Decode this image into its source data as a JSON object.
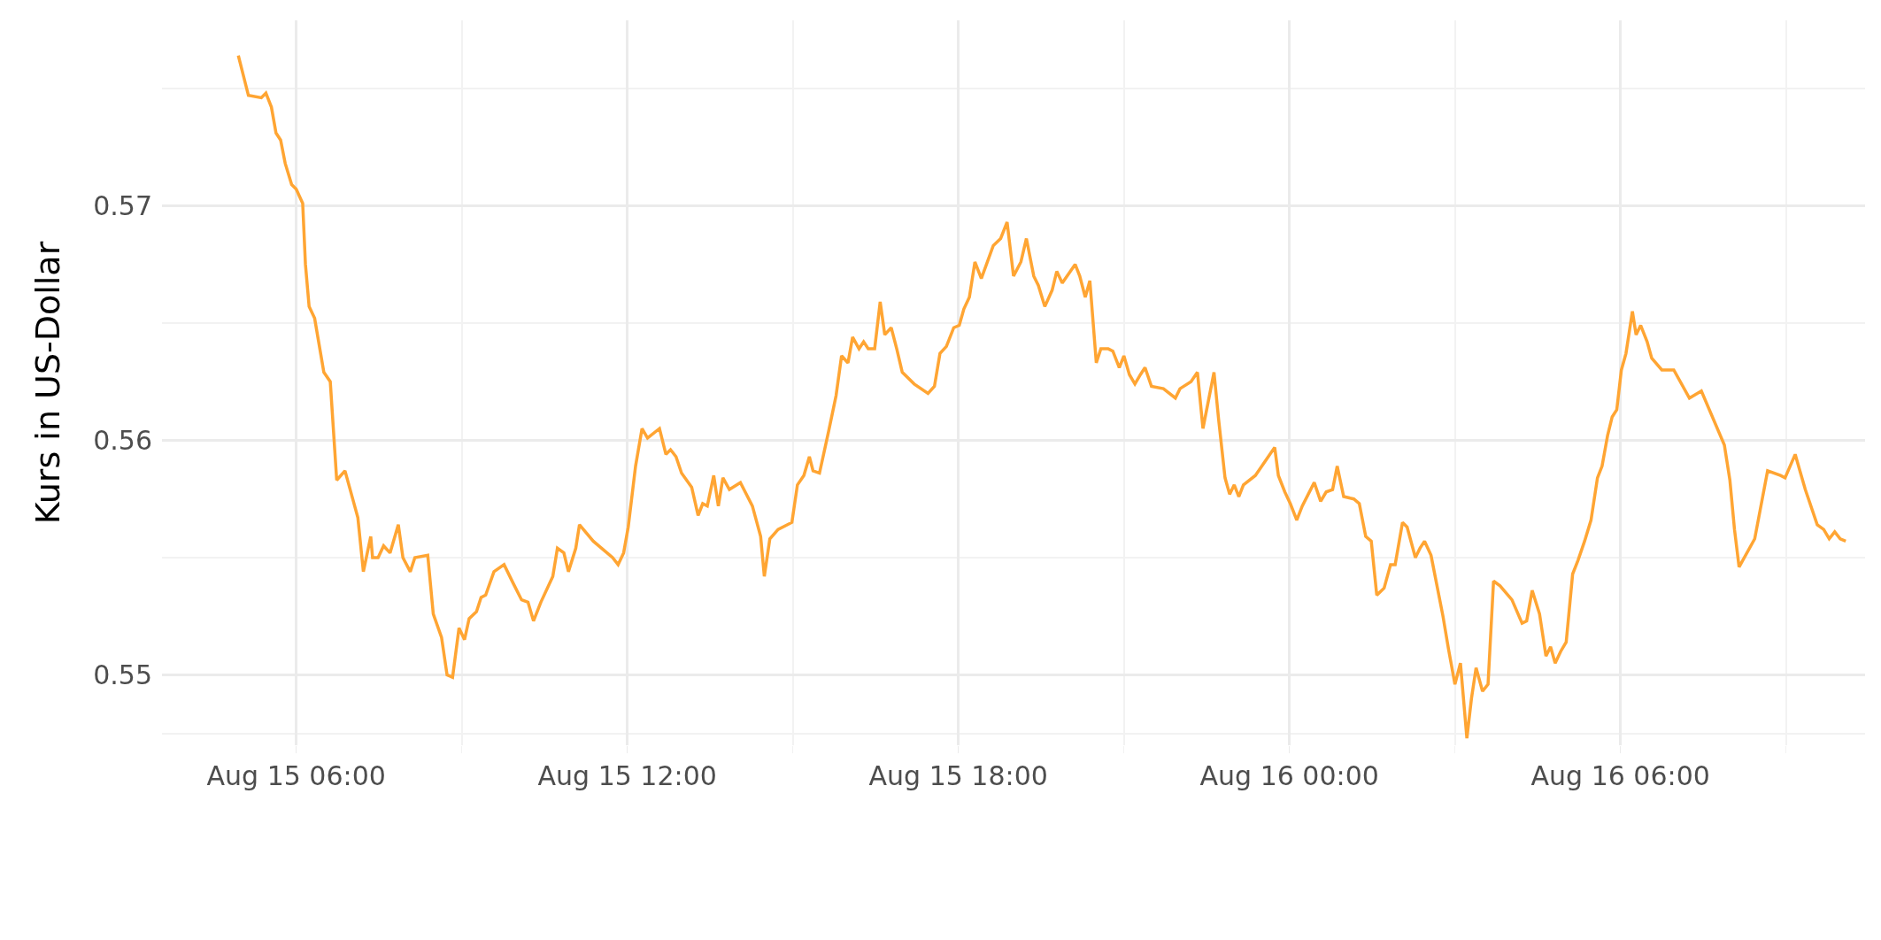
{
  "chart_data": {
    "type": "line",
    "ylabel": "Kurs in US-Dollar",
    "x": [
      "--08-15T04:57",
      "--08-15T05:08",
      "--08-15T05:22",
      "--08-15T05:27",
      "--08-15T05:33",
      "--08-15T05:38",
      "--08-15T05:43",
      "--08-15T05:48",
      "--08-15T05:55",
      "--08-15T06:00",
      "--08-15T06:07",
      "--08-15T06:10",
      "--08-15T06:14",
      "--08-15T06:20",
      "--08-15T06:30",
      "--08-15T06:37",
      "--08-15T06:44",
      "--08-15T06:53",
      "--08-15T07:07",
      "--08-15T07:13",
      "--08-15T07:21",
      "--08-15T07:23",
      "--08-15T07:29",
      "--08-15T07:35",
      "--08-15T07:42",
      "--08-15T07:51",
      "--08-15T07:56",
      "--08-15T08:04",
      "--08-15T08:09",
      "--08-15T08:23",
      "--08-15T08:29",
      "--08-15T08:38",
      "--08-15T08:44",
      "--08-15T08:50",
      "--08-15T08:57",
      "--08-15T09:03",
      "--08-15T09:08",
      "--08-15T09:16",
      "--08-15T09:21",
      "--08-15T09:26",
      "--08-15T09:35",
      "--08-15T09:46",
      "--08-15T09:56",
      "--08-15T10:05",
      "--08-15T10:12",
      "--08-15T10:18",
      "--08-15T10:26",
      "--08-15T10:39",
      "--08-15T10:44",
      "--08-15T10:51",
      "--08-15T10:56",
      "--08-15T11:04",
      "--08-15T11:08",
      "--08-15T11:23",
      "--08-15T11:44",
      "--08-15T11:50",
      "--08-15T11:56",
      "--08-15T12:01",
      "--08-15T12:09",
      "--08-15T12:16",
      "--08-15T12:22",
      "--08-15T12:35",
      "--08-15T12:42",
      "--08-15T12:47",
      "--08-15T12:53",
      "--08-15T12:59",
      "--08-15T13:10",
      "--08-15T13:17",
      "--08-15T13:22",
      "--08-15T13:27",
      "--08-15T13:34",
      "--08-15T13:39",
      "--08-15T13:44",
      "--08-15T13:51",
      "--08-15T14:03",
      "--08-15T14:16",
      "--08-15T14:25",
      "--08-15T14:29",
      "--08-15T14:35",
      "--08-15T14:44",
      "--08-15T14:59",
      "--08-15T15:05",
      "--08-15T15:12",
      "--08-15T15:18",
      "--08-15T15:22",
      "--08-15T15:29",
      "--08-15T15:39",
      "--08-15T15:47",
      "--08-15T15:53",
      "--08-15T16:00",
      "--08-15T16:05",
      "--08-15T16:12",
      "--08-15T16:17",
      "--08-15T16:22",
      "--08-15T16:29",
      "--08-15T16:35",
      "--08-15T16:40",
      "--08-15T16:47",
      "--08-15T16:53",
      "--08-15T16:59",
      "--08-15T17:12",
      "--08-15T17:27",
      "--08-15T17:34",
      "--08-15T17:40",
      "--08-15T17:47",
      "--08-15T17:55",
      "--08-15T18:01",
      "--08-15T18:06",
      "--08-15T18:12",
      "--08-15T18:18",
      "--08-15T18:25",
      "--08-15T18:38",
      "--08-15T18:46",
      "--08-15T18:53",
      "--08-15T19:00",
      "--08-15T19:08",
      "--08-15T19:14",
      "--08-15T19:22",
      "--08-15T19:27",
      "--08-15T19:34",
      "--08-15T19:42",
      "--08-15T19:47",
      "--08-15T19:53",
      "--08-15T20:07",
      "--08-15T20:12",
      "--08-15T20:18",
      "--08-15T20:23",
      "--08-15T20:30",
      "--08-15T20:35",
      "--08-15T20:43",
      "--08-15T20:48",
      "--08-15T20:55",
      "--08-15T21:00",
      "--08-15T21:06",
      "--08-15T21:12",
      "--08-15T21:18",
      "--08-15T21:23",
      "--08-15T21:30",
      "--08-15T21:43",
      "--08-15T21:56",
      "--08-15T22:01",
      "--08-15T22:13",
      "--08-15T22:20",
      "--08-15T22:26",
      "--08-15T22:38",
      "--08-15T22:43",
      "--08-15T22:50",
      "--08-15T22:55",
      "--08-15T23:00",
      "--08-15T23:05",
      "--08-15T23:10",
      "--08-15T23:23",
      "--08-15T23:44",
      "--08-15T23:48",
      "--08-15T23:55",
      "--08-16T00:01",
      "--08-16T00:08",
      "--08-16T00:14",
      "--08-16T00:27",
      "--08-16T00:34",
      "--08-16T00:40",
      "--08-16T00:47",
      "--08-16T00:52",
      "--08-16T00:59",
      "--08-16T01:10",
      "--08-16T01:16",
      "--08-16T01:23",
      "--08-16T01:29",
      "--08-16T01:35",
      "--08-16T01:43",
      "--08-16T01:50",
      "--08-16T01:55",
      "--08-16T02:03",
      "--08-16T02:08",
      "--08-16T02:17",
      "--08-16T02:22",
      "--08-16T02:27",
      "--08-16T02:34",
      "--08-16T02:40",
      "--08-16T02:47",
      "--08-16T02:53",
      "--08-16T03:00",
      "--08-16T03:06",
      "--08-16T03:13",
      "--08-16T03:18",
      "--08-16T03:23",
      "--08-16T03:30",
      "--08-16T03:36",
      "--08-16T03:42",
      "--08-16T03:49",
      "--08-16T04:02",
      "--08-16T04:13",
      "--08-16T04:18",
      "--08-16T04:24",
      "--08-16T04:32",
      "--08-16T04:39",
      "--08-16T04:44",
      "--08-16T04:49",
      "--08-16T04:55",
      "--08-16T05:01",
      "--08-16T05:08",
      "--08-16T05:14",
      "--08-16T05:21",
      "--08-16T05:28",
      "--08-16T05:35",
      "--08-16T05:40",
      "--08-16T05:46",
      "--08-16T05:51",
      "--08-16T05:56",
      "--08-16T06:01",
      "--08-16T06:06",
      "--08-16T06:13",
      "--08-16T06:17",
      "--08-16T06:22",
      "--08-16T06:29",
      "--08-16T06:34",
      "--08-16T06:45",
      "--08-16T06:58",
      "--08-16T07:15",
      "--08-16T07:28",
      "--08-16T07:53",
      "--08-16T07:59",
      "--08-16T08:04",
      "--08-16T08:09",
      "--08-16T08:26",
      "--08-16T08:40",
      "--08-16T08:54",
      "--08-16T08:59",
      "--08-16T09:10",
      "--08-16T09:21",
      "--08-16T09:34",
      "--08-16T09:41",
      "--08-16T09:47",
      "--08-16T09:53",
      "--08-16T09:59",
      "--08-16T10:05"
    ],
    "series": [
      {
        "color": "#ffa533",
        "values": [
          0.5764,
          0.5747,
          0.5746,
          0.5748,
          0.5742,
          0.5731,
          0.5728,
          0.5718,
          0.5709,
          0.5707,
          0.5701,
          0.5675,
          0.5657,
          0.5652,
          0.5629,
          0.5625,
          0.5583,
          0.5587,
          0.5567,
          0.5544,
          0.5559,
          0.555,
          0.555,
          0.5555,
          0.5552,
          0.5564,
          0.555,
          0.5544,
          0.555,
          0.5551,
          0.5526,
          0.5516,
          0.55,
          0.5499,
          0.552,
          0.5515,
          0.5524,
          0.5527,
          0.5533,
          0.5534,
          0.5544,
          0.5547,
          0.5539,
          0.5532,
          0.5531,
          0.5523,
          0.5531,
          0.5542,
          0.5554,
          0.5552,
          0.5544,
          0.5554,
          0.5564,
          0.5557,
          0.555,
          0.5547,
          0.5552,
          0.5563,
          0.5589,
          0.5605,
          0.5601,
          0.5605,
          0.5594,
          0.5596,
          0.5593,
          0.5586,
          0.558,
          0.5568,
          0.5573,
          0.5572,
          0.5585,
          0.5572,
          0.5584,
          0.5579,
          0.5582,
          0.5572,
          0.5559,
          0.5542,
          0.5558,
          0.5562,
          0.5565,
          0.5581,
          0.5585,
          0.5593,
          0.5587,
          0.5586,
          0.5604,
          0.5619,
          0.5636,
          0.5633,
          0.5644,
          0.5639,
          0.5642,
          0.5639,
          0.5639,
          0.5659,
          0.5645,
          0.5648,
          0.5639,
          0.5629,
          0.5624,
          0.562,
          0.5623,
          0.5637,
          0.564,
          0.5648,
          0.5649,
          0.5656,
          0.5661,
          0.5676,
          0.5669,
          0.5683,
          0.5686,
          0.5693,
          0.567,
          0.5676,
          0.5686,
          0.567,
          0.5666,
          0.5657,
          0.5664,
          0.5672,
          0.5667,
          0.5675,
          0.567,
          0.5661,
          0.5668,
          0.5633,
          0.5639,
          0.5639,
          0.5638,
          0.5631,
          0.5636,
          0.5628,
          0.5624,
          0.5628,
          0.5631,
          0.5623,
          0.5622,
          0.5618,
          0.5622,
          0.5625,
          0.5629,
          0.5605,
          0.5629,
          0.5609,
          0.5584,
          0.5577,
          0.5581,
          0.5576,
          0.5581,
          0.5585,
          0.5597,
          0.5585,
          0.5578,
          0.5573,
          0.5566,
          0.5572,
          0.5582,
          0.5574,
          0.5578,
          0.5579,
          0.5589,
          0.5576,
          0.5575,
          0.5573,
          0.5559,
          0.5557,
          0.5534,
          0.5537,
          0.5547,
          0.5547,
          0.5565,
          0.5563,
          0.555,
          0.5554,
          0.5557,
          0.5551,
          0.5539,
          0.5525,
          0.5511,
          0.5496,
          0.5505,
          0.5473,
          0.549,
          0.5503,
          0.5493,
          0.5496,
          0.554,
          0.5538,
          0.5532,
          0.5522,
          0.5523,
          0.5536,
          0.5526,
          0.5508,
          0.5512,
          0.5505,
          0.551,
          0.5514,
          0.5543,
          0.5549,
          0.5557,
          0.5566,
          0.5584,
          0.5589,
          0.5602,
          0.561,
          0.5613,
          0.563,
          0.5637,
          0.5655,
          0.5645,
          0.5649,
          0.5642,
          0.5635,
          0.563,
          0.563,
          0.5618,
          0.5621,
          0.5598,
          0.5583,
          0.5562,
          0.5546,
          0.5558,
          0.5587,
          0.5585,
          0.5584,
          0.5594,
          0.5579,
          0.5564,
          0.5562,
          0.5558,
          0.5561,
          0.5558,
          0.5557
        ]
      }
    ],
    "xlim": [
      "--08-15T03:34",
      "--08-16T10:26"
    ],
    "xticks": [
      {
        "value": "--08-15T06:00",
        "label": "Aug 15 06:00"
      },
      {
        "value": "--08-15T09:00",
        "label": null
      },
      {
        "value": "--08-15T12:00",
        "label": "Aug 15 12:00"
      },
      {
        "value": "--08-15T15:00",
        "label": null
      },
      {
        "value": "--08-15T18:00",
        "label": "Aug 15 18:00"
      },
      {
        "value": "--08-15T21:00",
        "label": null
      },
      {
        "value": "--08-16T00:00",
        "label": "Aug 16 00:00"
      },
      {
        "value": "--08-16T03:00",
        "label": null
      },
      {
        "value": "--08-16T06:00",
        "label": "Aug 16 06:00"
      },
      {
        "value": "--08-16T09:00",
        "label": null
      }
    ],
    "ylim": [
      0.547,
      0.5779
    ],
    "yticks": [
      {
        "value": 0.5475,
        "label": null
      },
      0.55,
      {
        "value": 0.555,
        "label": null
      },
      0.56,
      {
        "value": 0.565,
        "label": null
      },
      0.57,
      {
        "value": 0.575,
        "label": null
      }
    ],
    "grid": true,
    "line_style": "solid",
    "marker": "none"
  }
}
